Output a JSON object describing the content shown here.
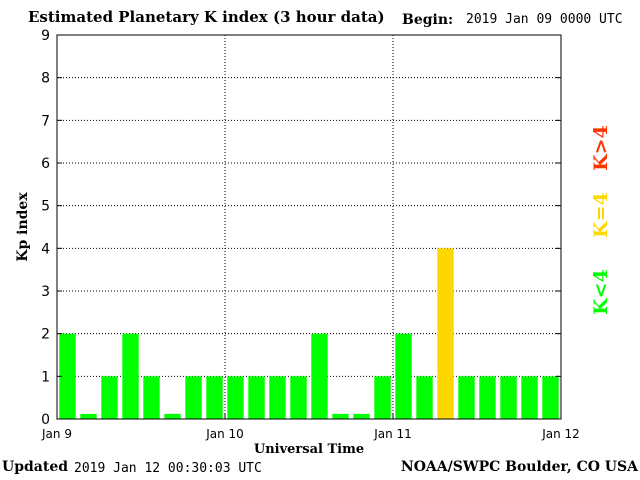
{
  "header": {
    "title": "Estimated Planetary K index (3 hour data)",
    "begin_label": "Begin:",
    "begin_value": "2019 Jan 09 0000 UTC"
  },
  "footer": {
    "updated_label": "Updated",
    "updated_value": "2019 Jan 12 00:30:03 UTC",
    "source": "NOAA/SWPC Boulder, CO USA"
  },
  "legend": {
    "k_gt4": "K>4",
    "k_eq4": "K=4",
    "k_lt4": "K<4"
  },
  "colors": {
    "k_lt4": "#00ff00",
    "k_eq4": "#ffd700",
    "k_gt4": "#ff3300",
    "plot_background": "#ffffff",
    "grid": "#000000"
  },
  "chart_data": {
    "type": "bar",
    "title": "Estimated Planetary K index (3 hour data)",
    "xlabel": "Universal Time",
    "ylabel": "Kp index",
    "ylim": [
      0,
      9
    ],
    "yticks": [
      "0",
      "1",
      "2",
      "3",
      "4",
      "5",
      "6",
      "7",
      "8",
      "9"
    ],
    "xticks": [
      "Jan 9",
      "Jan 10",
      "Jan 11",
      "Jan 12"
    ],
    "grid": true,
    "values": [
      2,
      0,
      1,
      2,
      1,
      0,
      1,
      1,
      1,
      1,
      1,
      1,
      2,
      0,
      0,
      1,
      2,
      1,
      4,
      1,
      1,
      1,
      1,
      1
    ]
  }
}
